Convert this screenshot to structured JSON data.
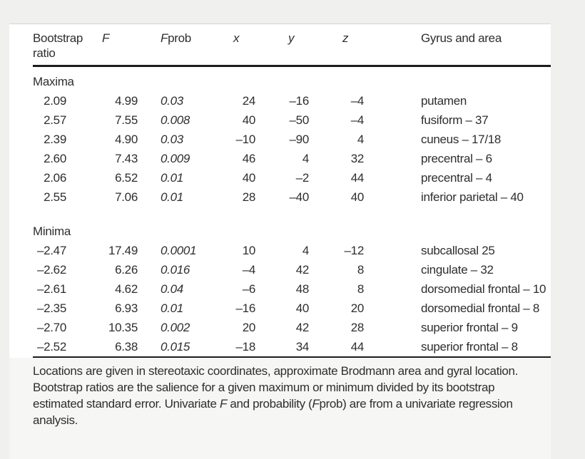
{
  "colors": {
    "page_bg": "#f0f0ef",
    "card_bg": "#ffffff",
    "rule": "#1c1c1c",
    "text": "#2e2e2e"
  },
  "table": {
    "columns": [
      {
        "name": "bootstrap-ratio",
        "header": [
          {
            "t": "Bootstrap ratio"
          }
        ]
      },
      {
        "name": "f",
        "header": [
          {
            "t": "F",
            "i": true
          }
        ]
      },
      {
        "name": "fprob",
        "header": [
          {
            "t": "F",
            "i": true
          },
          {
            "t": "prob"
          }
        ]
      },
      {
        "name": "x",
        "header": [
          {
            "t": "x",
            "i": true
          }
        ]
      },
      {
        "name": "y",
        "header": [
          {
            "t": "y",
            "i": true
          }
        ]
      },
      {
        "name": "z",
        "header": [
          {
            "t": "z",
            "i": true
          }
        ]
      },
      {
        "name": "gyrus-and-area",
        "header": [
          {
            "t": "Gyrus and area"
          }
        ]
      }
    ],
    "sections": [
      {
        "label": "Maxima",
        "rows": [
          [
            "2.09",
            "4.99",
            "0.03",
            "24",
            "–16",
            "–4",
            "putamen"
          ],
          [
            "2.57",
            "7.55",
            "0.008",
            "40",
            "–50",
            "–4",
            "fusiform – 37"
          ],
          [
            "2.39",
            "4.90",
            "0.03",
            "–10",
            "–90",
            "4",
            "cuneus – 17/18"
          ],
          [
            "2.60",
            "7.43",
            "0.009",
            "46",
            "4",
            "32",
            "precentral – 6"
          ],
          [
            "2.06",
            "6.52",
            "0.01",
            "40",
            "–2",
            "44",
            "precentral – 4"
          ],
          [
            "2.55",
            "7.06",
            "0.01",
            "28",
            "–40",
            "40",
            "inferior parietal – 40"
          ]
        ]
      },
      {
        "label": "Minima",
        "rows": [
          [
            "–2.47",
            "17.49",
            "0.0001",
            "10",
            "4",
            "–12",
            "subcallosal 25"
          ],
          [
            "–2.62",
            "6.26",
            "0.016",
            "–4",
            "42",
            "8",
            "cingulate – 32"
          ],
          [
            "–2.61",
            "4.62",
            "0.04",
            "–6",
            "48",
            "8",
            "dorsomedial frontal – 10"
          ],
          [
            "–2.35",
            "6.93",
            "0.01",
            "–16",
            "40",
            "20",
            "dorsomedial frontal – 8"
          ],
          [
            "–2.70",
            "10.35",
            "0.002",
            "20",
            "42",
            "28",
            "superior frontal – 9"
          ],
          [
            "–2.52",
            "6.38",
            "0.015",
            "–18",
            "34",
            "44",
            "superior frontal – 8"
          ]
        ]
      }
    ]
  },
  "footnote": [
    {
      "t": "Locations are given in stereotaxic coordinates, approximate Brodmann area and gyral location. Bootstrap ratios are the salience for a given maximum or minimum divided by its bootstrap estimated standard error. Univariate "
    },
    {
      "t": "F",
      "i": true
    },
    {
      "t": " and probability ("
    },
    {
      "t": "F",
      "i": true
    },
    {
      "t": "prob) are from a univariate regression analysis."
    }
  ]
}
